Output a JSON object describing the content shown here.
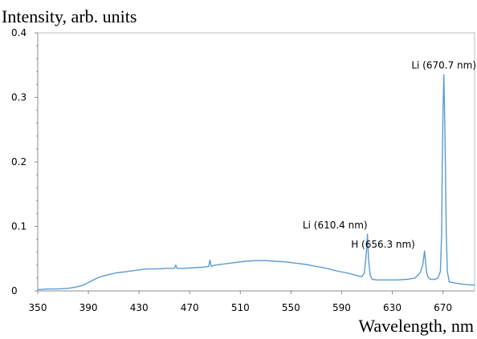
{
  "chart_data": {
    "type": "line",
    "title": "",
    "ylabel": "Intensity, arb. units",
    "xlabel": "Wavelength, nm",
    "xlim": [
      350,
      695
    ],
    "ylim": [
      0,
      0.4
    ],
    "x_ticks": [
      350,
      390,
      430,
      470,
      510,
      550,
      590,
      630,
      670
    ],
    "y_ticks": [
      0,
      0.1,
      0.2,
      0.3,
      0.4
    ],
    "y_tick_labels": [
      "0",
      "0.1",
      "0.2",
      "0.3",
      "0.4"
    ],
    "grid": false,
    "line_color": "#5b9bd5",
    "series": [
      {
        "x": [
          350,
          358,
          366,
          374,
          380,
          386,
          392,
          398,
          405,
          412,
          420,
          428,
          436,
          444,
          452,
          458,
          459,
          460,
          466,
          474,
          482,
          485,
          486,
          487,
          490,
          498,
          506,
          514,
          522,
          530,
          538,
          546,
          554,
          562,
          570,
          578,
          586,
          594,
          600,
          604,
          606,
          608,
          609.6,
          610.4,
          611.2,
          612.5,
          614,
          618,
          626,
          634,
          642,
          648,
          652,
          654,
          655.5,
          656.3,
          657,
          658,
          660,
          664,
          666,
          668,
          669,
          669.5,
          670.1,
          670.7,
          671.3,
          671.9,
          672.6,
          673.5,
          675,
          680,
          687,
          695
        ],
        "y": [
          0.002,
          0.003,
          0.003,
          0.004,
          0.006,
          0.009,
          0.015,
          0.021,
          0.025,
          0.028,
          0.03,
          0.032,
          0.034,
          0.034,
          0.035,
          0.035,
          0.04,
          0.035,
          0.035,
          0.036,
          0.037,
          0.038,
          0.048,
          0.038,
          0.04,
          0.042,
          0.044,
          0.046,
          0.047,
          0.047,
          0.046,
          0.045,
          0.043,
          0.041,
          0.038,
          0.035,
          0.031,
          0.028,
          0.025,
          0.023,
          0.022,
          0.028,
          0.06,
          0.088,
          0.05,
          0.025,
          0.018,
          0.017,
          0.017,
          0.017,
          0.018,
          0.02,
          0.028,
          0.04,
          0.062,
          0.045,
          0.03,
          0.022,
          0.018,
          0.018,
          0.02,
          0.03,
          0.09,
          0.2,
          0.28,
          0.335,
          0.28,
          0.2,
          0.09,
          0.03,
          0.014,
          0.012,
          0.01,
          0.009
        ]
      }
    ],
    "annotations": [
      {
        "text": "Li (670.7 nm)",
        "x": 670.7,
        "y": 0.345,
        "anchor": "middle"
      },
      {
        "text": "Li (610.4 nm)",
        "x": 610.4,
        "y": 0.097,
        "anchor": "end"
      },
      {
        "text": "H (656.3 nm)",
        "x": 648,
        "y": 0.067,
        "anchor": "end"
      }
    ]
  }
}
